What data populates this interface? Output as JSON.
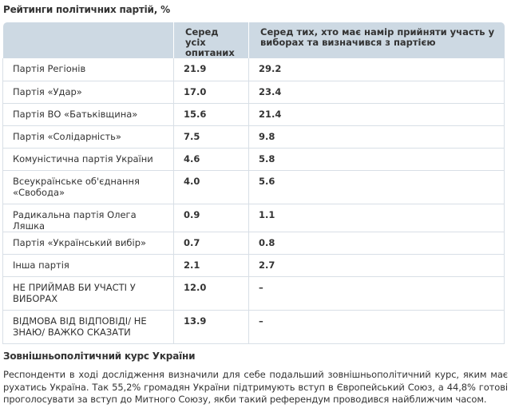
{
  "title": "Рейтинги політичних партій, %",
  "table": {
    "headers": [
      "",
      "Серед усіх опитаних",
      "Серед тих, хто має намір прийняти участь у виборах та визначився з партією"
    ],
    "rows": [
      {
        "party": "Партія Регіонів",
        "all": "21.9",
        "voters": "29.2"
      },
      {
        "party": "Партія «Удар»",
        "all": "17.0",
        "voters": "23.4"
      },
      {
        "party": "Партія ВО «Батьківщина»",
        "all": "15.6",
        "voters": "21.4"
      },
      {
        "party": "Партія «Солідарність»",
        "all": "7.5",
        "voters": "9.8"
      },
      {
        "party": "Комуністична партія України",
        "all": "4.6",
        "voters": "5.8"
      },
      {
        "party": "Всеукраїнське об'єднання «Свобода»",
        "all": "4.0",
        "voters": "5.6"
      },
      {
        "party": "Радикальна партія Олега Ляшка",
        "all": "0.9",
        "voters": "1.1"
      },
      {
        "party": "Партія «Український вибір»",
        "all": "0.7",
        "voters": "0.8"
      },
      {
        "party": "Інша партія",
        "all": "2.1",
        "voters": "2.7"
      },
      {
        "party": "НЕ ПРИЙМАВ БИ УЧАСТІ У ВИБОРАХ",
        "all": "12.0",
        "voters": "–"
      },
      {
        "party": "ВІДМОВА ВІД ВІДПОВІДІ/ НЕ ЗНАЮ/ ВАЖКО СКАЗАТИ",
        "all": "13.9",
        "voters": "–"
      }
    ]
  },
  "section_title": "Зовнішньополітичний курс України",
  "paragraph": "Респонденти в ході дослідження визначили для себе подальший зовнішньополітичний курс, яким має рухатись Україна. Так 55,2% громадян України підтримують вступ в Європейський Союз, а 44,8% готові проголосувати за вступ до Митного Союзу, якби такий референдум проводився найближчим часом."
}
